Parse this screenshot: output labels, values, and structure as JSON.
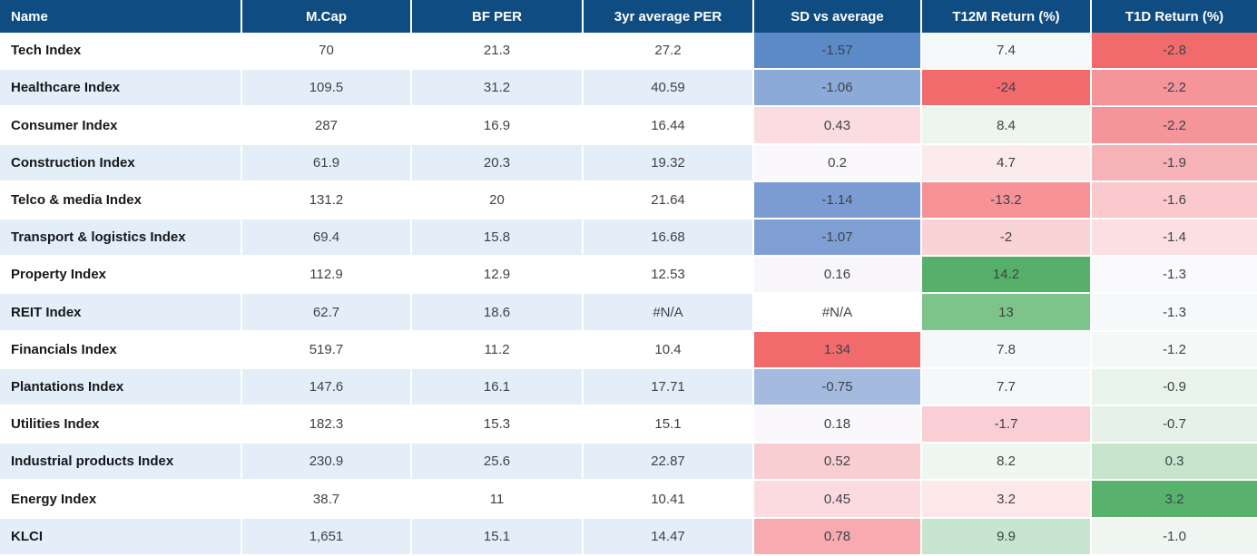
{
  "style": {
    "header_bg": "#0f4c81",
    "header_text": "#ffffff",
    "stripe_bg": "#e4eef8",
    "positive_strong_green": "#57b06a",
    "negative_strong_red": "#f16b6c",
    "negative_strong_blue": "#5b8ac6"
  },
  "chart_data": {
    "type": "table",
    "title": "Sector index valuation and returns table with conditional formatting",
    "columns": [
      "Name",
      "M.Cap",
      "BF PER",
      "3yr average PER",
      "SD vs average",
      "T12M Return (%)",
      "T1D Return (%)"
    ],
    "rows": [
      {
        "cells": [
          "Tech Index",
          "70",
          "21.3",
          "27.2",
          "-1.57",
          "7.4",
          "-2.8"
        ],
        "cell_bg": [
          null,
          null,
          null,
          null,
          "#5b8ac6",
          "#f6f9f9",
          "#f16b6c"
        ]
      },
      {
        "cells": [
          "Healthcare Index",
          "109.5",
          "31.2",
          "40.59",
          "-1.06",
          "-24",
          "-2.2"
        ],
        "cell_bg": [
          null,
          null,
          null,
          null,
          "#8caad8",
          "#f16b6c",
          "#f5959a"
        ]
      },
      {
        "cells": [
          "Consumer Index",
          "287",
          "16.9",
          "16.44",
          "0.43",
          "8.4",
          "-2.2"
        ],
        "cell_bg": [
          null,
          null,
          null,
          null,
          "#fbdce0",
          "#ecf5ee",
          "#f5959a"
        ]
      },
      {
        "cells": [
          "Construction Index",
          "61.9",
          "20.3",
          "19.32",
          "0.2",
          "4.7",
          "-1.9"
        ],
        "cell_bg": [
          null,
          null,
          null,
          null,
          "#fbf8fb",
          "#fcebed",
          "#f7b2b7"
        ]
      },
      {
        "cells": [
          "Telco & media Index",
          "131.2",
          "20",
          "21.64",
          "-1.14",
          "-13.2",
          "-1.6"
        ],
        "cell_bg": [
          null,
          null,
          null,
          null,
          "#7b9cd3",
          "#f79297",
          "#f9c9ce"
        ]
      },
      {
        "cells": [
          "Transport & logistics Index",
          "69.4",
          "15.8",
          "16.68",
          "-1.07",
          "-2",
          "-1.4"
        ],
        "cell_bg": [
          null,
          null,
          null,
          null,
          "#7f9fd4",
          "#fad3d7",
          "#fbdfe2"
        ]
      },
      {
        "cells": [
          "Property Index",
          "112.9",
          "12.9",
          "12.53",
          "0.16",
          "14.2",
          "-1.3"
        ],
        "cell_bg": [
          null,
          null,
          null,
          null,
          "#f8f6fa",
          "#57b06a",
          "#faf9fb"
        ]
      },
      {
        "cells": [
          "REIT Index",
          "62.7",
          "18.6",
          "#N/A",
          "#N/A",
          "13",
          "-1.3"
        ],
        "cell_bg": [
          null,
          null,
          null,
          null,
          "#ffffff",
          "#7cc489",
          "#f6f9fa"
        ]
      },
      {
        "cells": [
          "Financials Index",
          "519.7",
          "11.2",
          "10.4",
          "1.34",
          "7.8",
          "-1.2"
        ],
        "cell_bg": [
          null,
          null,
          null,
          null,
          "#f16b6c",
          "#f5f8f9",
          "#f4f8f7"
        ]
      },
      {
        "cells": [
          "Plantations Index",
          "147.6",
          "16.1",
          "17.71",
          "-0.75",
          "7.7",
          "-0.9"
        ],
        "cell_bg": [
          null,
          null,
          null,
          null,
          "#a4badf",
          "#f5f8f9",
          "#e9f4ec"
        ]
      },
      {
        "cells": [
          "Utilities Index",
          "182.3",
          "15.3",
          "15.1",
          "0.18",
          "-1.7",
          "-0.7"
        ],
        "cell_bg": [
          null,
          null,
          null,
          null,
          "#faf8fb",
          "#f9ced4",
          "#e6f2e9"
        ]
      },
      {
        "cells": [
          "Industrial products Index",
          "230.9",
          "25.6",
          "22.87",
          "0.52",
          "8.2",
          "0.3"
        ],
        "cell_bg": [
          null,
          null,
          null,
          null,
          "#f9ced3",
          "#eef7f0",
          "#c7e5cc"
        ]
      },
      {
        "cells": [
          "Energy Index",
          "38.7",
          "11",
          "10.41",
          "0.45",
          "3.2",
          "3.2"
        ],
        "cell_bg": [
          null,
          null,
          null,
          null,
          "#fbdbdf",
          "#fce7e9",
          "#58b26c"
        ]
      },
      {
        "cells": [
          "KLCI",
          "1,651",
          "15.1",
          "14.47",
          "0.78",
          "9.9",
          "-1.0"
        ],
        "cell_bg": [
          null,
          null,
          null,
          null,
          "#f7abb0",
          "#c8e6cf",
          "#eff6f1"
        ]
      }
    ]
  }
}
